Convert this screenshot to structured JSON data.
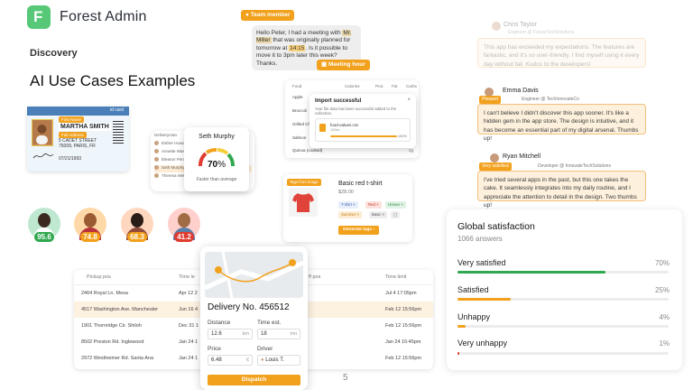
{
  "header": {
    "brand": "Forest Admin",
    "logo_letter": "F",
    "section": "Discovery",
    "title": "AI Use Cases Examples"
  },
  "page_number": "5",
  "colors": {
    "accent": "#f2a11d",
    "brand_green": "#57c877",
    "green": "#2fa84f",
    "red": "#e03c31"
  },
  "id_card": {
    "header": "id card",
    "name": "MARTHA SMITH",
    "tag1": "First Name",
    "tag2": "Full Address",
    "address": "5 CADET STREET 75009, PARIS, FR",
    "date": "07/21/1993"
  },
  "staff": {
    "names": [
      "Deliveryman",
      "Esther Howard",
      "Annette Wasabe",
      "Eleanor Pena",
      "Seth Murphy",
      "Theresa Webb"
    ],
    "gauge_name": "Seth Murphy",
    "gauge_value": "70",
    "gauge_unit": "%",
    "gauge_caption": "Faster than average"
  },
  "scores": [
    "95.6",
    "74.8",
    "68.3",
    "41.2"
  ],
  "chat": {
    "badge_team": "Team member",
    "p1": "Hello Peter, I had a meeting with",
    "h1": "Mr. Miller",
    "p2": "that was originally planned for tomorrow at",
    "h2": "14:15",
    "p3": ". Is it possible to move it to 3pm later this week? Thanks.",
    "badge_meeting": "Meeting hour"
  },
  "food_table": {
    "headers": [
      "Food",
      "Calories",
      "Prot.",
      "Fat",
      "Carbs"
    ],
    "rows": [
      "Apple",
      "Broccoli",
      "Grilled Chicken",
      "Salmon",
      "Quinoa (cooked)"
    ],
    "right_values": [
      "4g",
      "4g",
      "2g",
      "2g",
      "2g"
    ]
  },
  "import_modal": {
    "title": "Import successful",
    "close": "×",
    "desc": "Your file data has been successful added to the collection.",
    "file_name": "food-values.csv",
    "file_size": "190kb",
    "percent": "100%"
  },
  "product": {
    "tag": "Tags from image",
    "name": "Basic red t-shirt",
    "price": "$28.00",
    "chips": [
      "T-shirt ×",
      "Red ×",
      "Unisex ×",
      "Summer ×",
      "Basic ×"
    ],
    "generate": "Generate tags"
  },
  "reviews": [
    {
      "name": "Chris Taylor",
      "sub": "Engineer @ FutureTechSolutions",
      "tag": "",
      "text": "This app has exceeded my expectations. The features are fantastic, and it's so user-friendly. I find myself using it every day without fail. Kudos to the developers!"
    },
    {
      "name": "Emma Davis",
      "sub": "Engineer @ TechInnovateCo",
      "tag": "Pleased",
      "text": "I can't believe I didn't discover this app sooner. It's like a hidden gem in the app store. The design is intuitive, and it has become an essential part of my digital arsenal. Thumbs up!"
    },
    {
      "name": "Ryan Mitchell",
      "sub": "Developer @ InnovateTechSolutions",
      "tag": "Very satisfied",
      "text": "I've tried several apps in the past, but this one takes the cake. It seamlessly integrates into my daily routine, and I appreciate the attention to detail in the design. Two thumbs up!"
    }
  ],
  "satisfaction": {
    "title": "Global satisfaction",
    "subtitle": "1066 answers",
    "items": [
      {
        "label": "Very satisfied",
        "pct": "70%",
        "value": 70,
        "color": "#2fa84f"
      },
      {
        "label": "Satisfied",
        "pct": "25%",
        "value": 25,
        "color": "#f2a11d"
      },
      {
        "label": "Unhappy",
        "pct": "4%",
        "value": 4,
        "color": "#f2a11d"
      },
      {
        "label": "Very unhappy",
        "pct": "1%",
        "value": 1,
        "color": "#e03c31"
      }
    ]
  },
  "delivery_table": {
    "headers": [
      "Pickup pos",
      "Time le",
      "ff pos",
      "Time limit"
    ],
    "rows": [
      [
        "2464 Royal Ln. Mesa",
        "Apr 12 2",
        "",
        "Jul 4 17:05pm"
      ],
      [
        "4517 Washington Ave. Manchester",
        "Jun 16 4",
        "",
        "Feb 12 15:56pm"
      ],
      [
        "1901 Thornridge Cir. Shiloh",
        "Dec 31 1",
        "",
        "Feb 12 15:56pm"
      ],
      [
        "8502 Preston Rd. Inglewood",
        "Jan 24 1",
        "",
        "Jan 24 16:45pm"
      ],
      [
        "2972 Westheimer Rd. Santa Ana",
        "Jan 24 1",
        "",
        "Feb 12 15:56pm"
      ]
    ]
  },
  "delivery_card": {
    "title": "Delivery No. 456512",
    "distance_label": "Distance",
    "distance_value": "12.6",
    "distance_unit": "km",
    "time_label": "Time est.",
    "time_value": "18",
    "time_unit": "mn",
    "price_label": "Price",
    "price_value": "6.48",
    "price_unit": "€",
    "driver_label": "Driver",
    "driver_value": "Louis T.",
    "button": "Dispatch"
  }
}
